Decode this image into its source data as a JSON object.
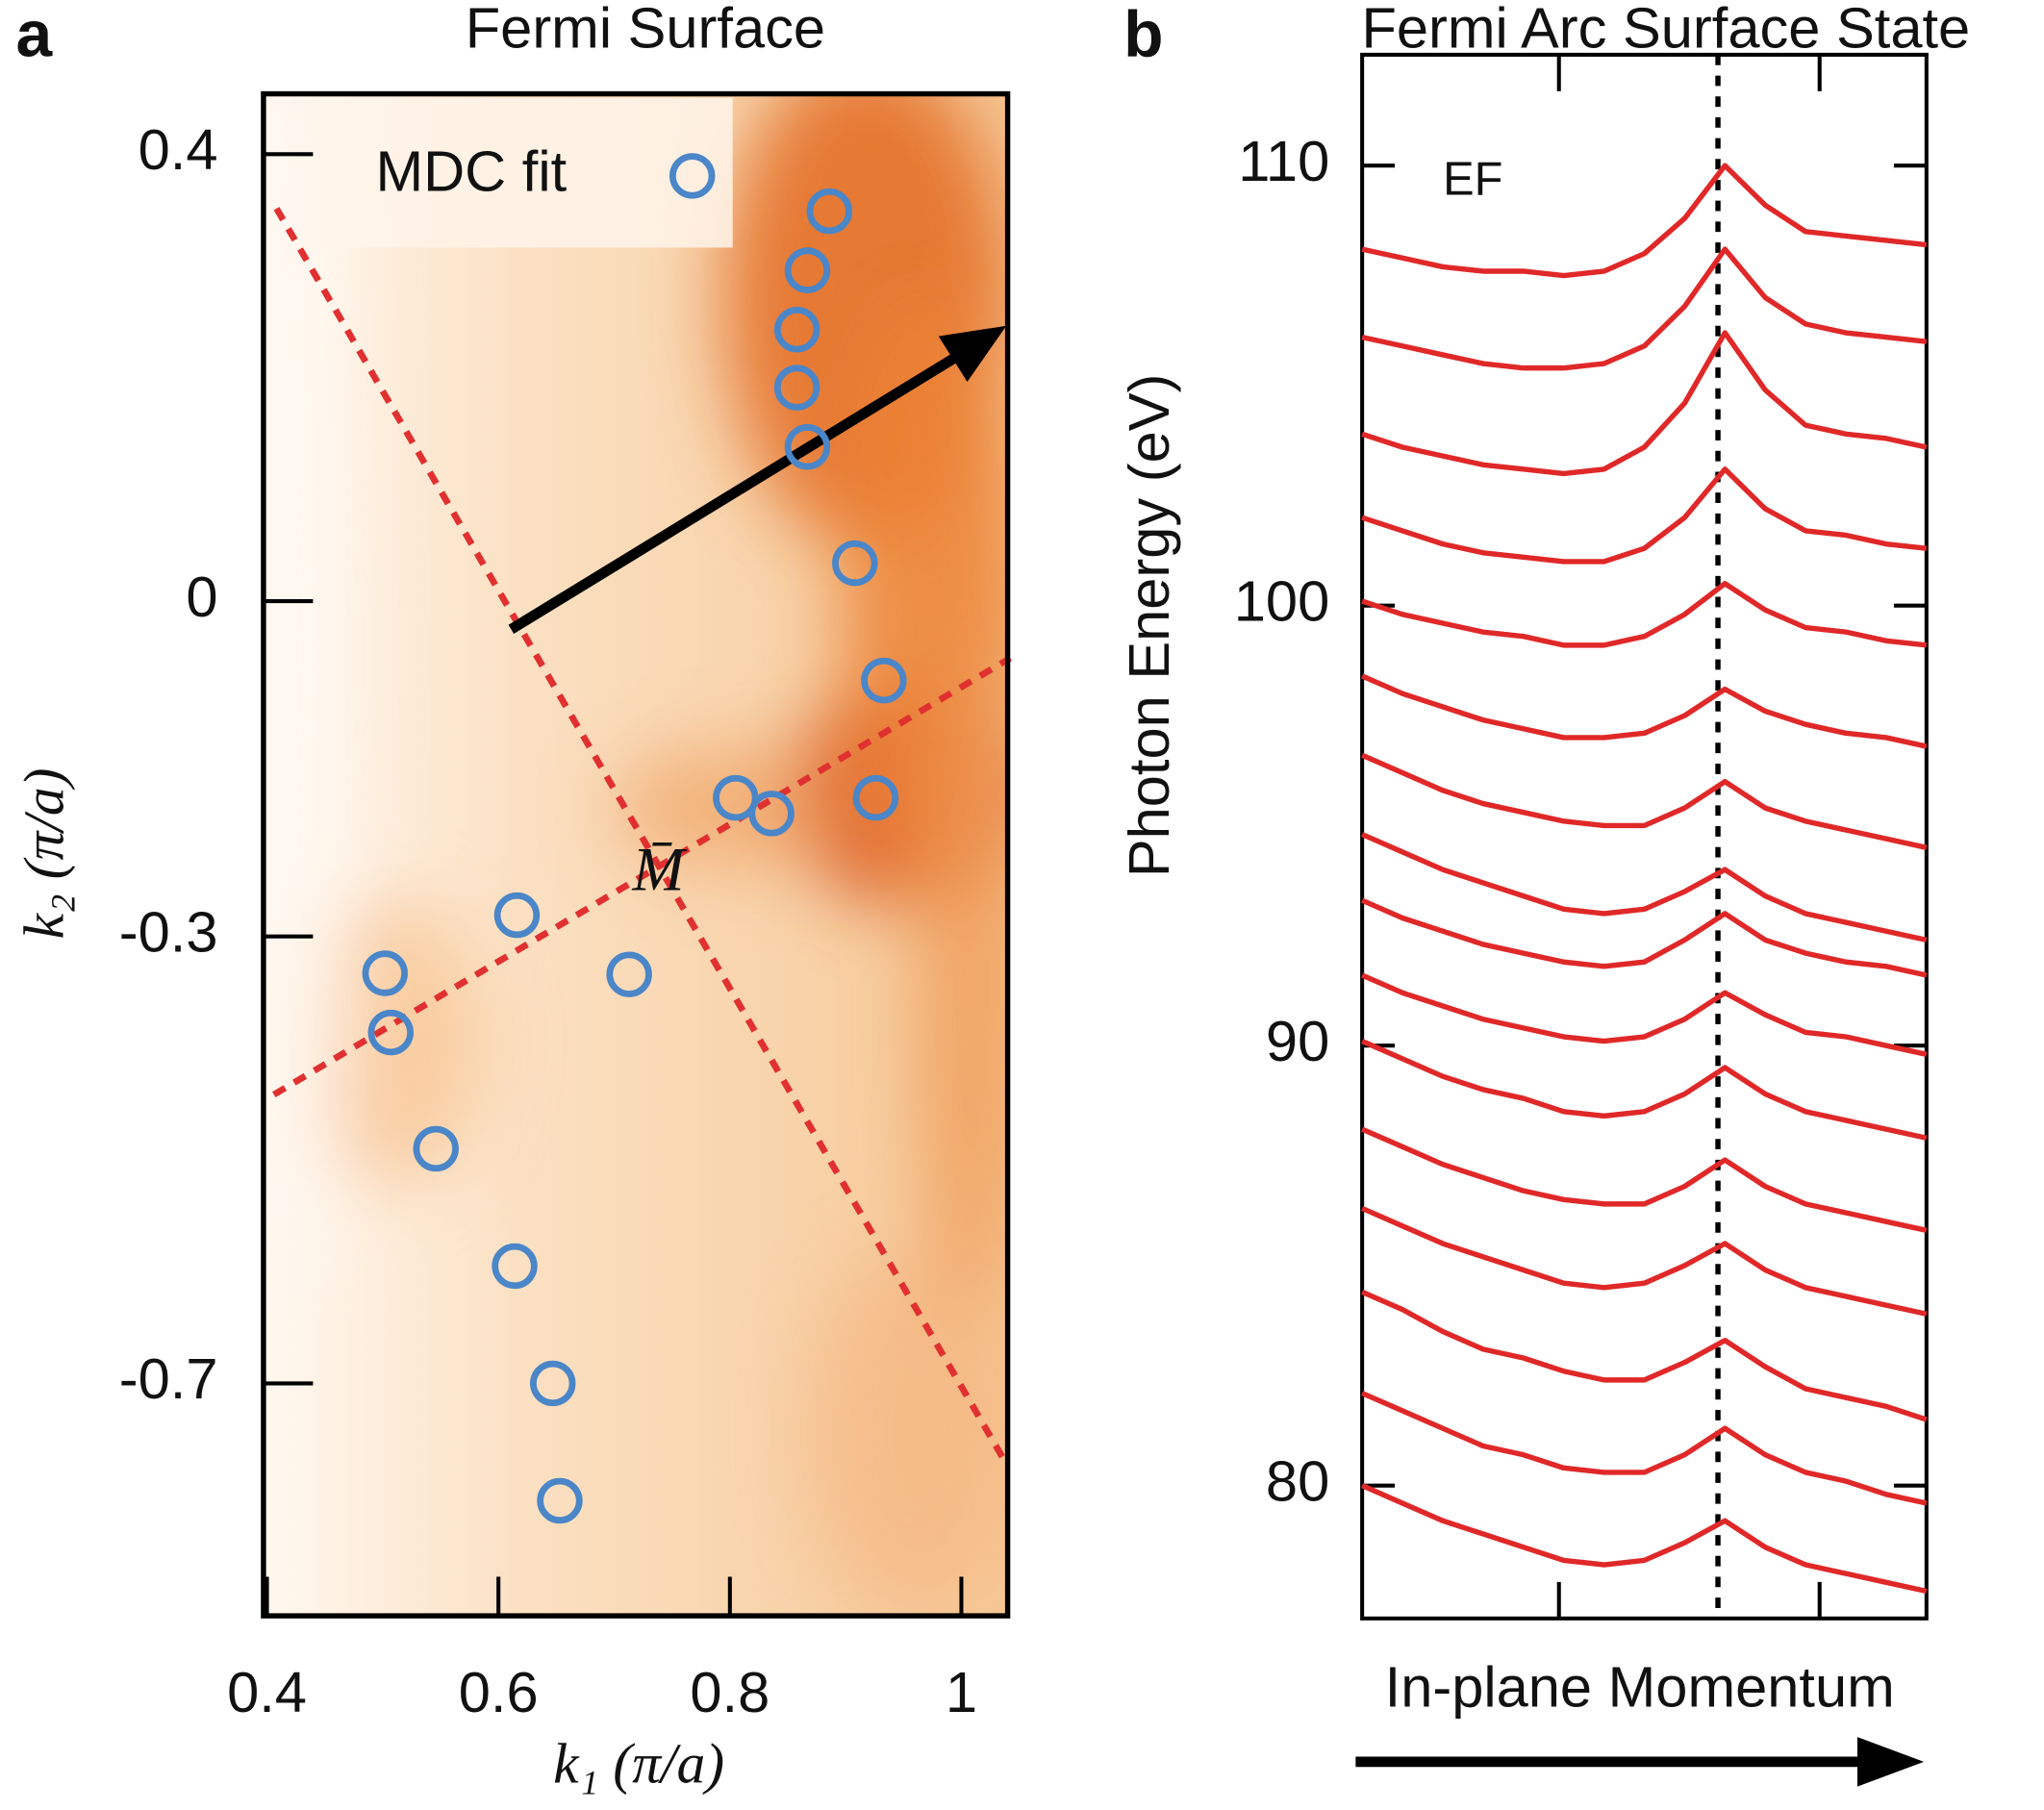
{
  "chart_data": [
    {
      "type": "scatter",
      "panel_label": "a",
      "title": "Fermi Surface",
      "x_label": "k₁ (π/a)",
      "y_label": "k₂ (π/a)",
      "annotations": [
        "M̄"
      ],
      "legend": "upper left",
      "xlim": [
        0.397,
        1.04
      ],
      "ylim": [
        -0.908,
        0.454
      ],
      "xticks": [
        0.4,
        0.6,
        0.8,
        1
      ],
      "yticks": [
        0.4,
        0,
        -0.3,
        -0.7
      ],
      "series": [
        {
          "name": "MDC fit",
          "color": "#4a86c8",
          "x": [
            0.886,
            0.867,
            0.858,
            0.858,
            0.867,
            0.908,
            0.933,
            0.926,
            0.805,
            0.836,
            0.616,
            0.713,
            0.502,
            0.507,
            0.546,
            0.614,
            0.647,
            0.653
          ],
          "values": [
            0.349,
            0.296,
            0.243,
            0.191,
            0.138,
            0.034,
            -0.071,
            -0.176,
            -0.176,
            -0.19,
            -0.281,
            -0.334,
            -0.333,
            -0.386,
            -0.49,
            -0.595,
            -0.7,
            -0.805
          ]
        }
      ]
    },
    {
      "type": "line",
      "panel_label": "b",
      "title": "Fermi Arc Surface State",
      "x_label": "In-plane Momentum",
      "y_label": "Photon Energy (eV)",
      "annotations": [
        "EF"
      ],
      "ylim": [
        76.98,
        112.52
      ],
      "yticks": [
        80,
        90,
        100,
        110
      ],
      "series": [
        {
          "color": "#e02828",
          "values": [
            108.1,
            107.9,
            107.7,
            107.6,
            107.6,
            107.5,
            107.6,
            108.0,
            108.8,
            110.0,
            109.1,
            108.5,
            108.4,
            108.3,
            108.2
          ]
        },
        {
          "color": "#e02828",
          "values": [
            106.1,
            105.9,
            105.7,
            105.5,
            105.4,
            105.4,
            105.5,
            105.9,
            106.8,
            108.1,
            107.0,
            106.4,
            106.2,
            106.1,
            106.0
          ]
        },
        {
          "color": "#e02828",
          "values": [
            103.9,
            103.6,
            103.4,
            103.2,
            103.1,
            103.0,
            103.1,
            103.6,
            104.6,
            106.2,
            104.9,
            104.1,
            103.9,
            103.8,
            103.6
          ]
        },
        {
          "color": "#e02828",
          "values": [
            102.0,
            101.7,
            101.4,
            101.2,
            101.1,
            101.0,
            101.0,
            101.3,
            102.0,
            103.1,
            102.2,
            101.7,
            101.6,
            101.4,
            101.3
          ]
        },
        {
          "color": "#e02828",
          "values": [
            100.1,
            99.8,
            99.6,
            99.4,
            99.3,
            99.1,
            99.1,
            99.3,
            99.8,
            100.5,
            99.9,
            99.5,
            99.4,
            99.2,
            99.1
          ]
        },
        {
          "color": "#e02828",
          "values": [
            98.4,
            98.0,
            97.7,
            97.4,
            97.2,
            97.0,
            97.0,
            97.1,
            97.5,
            98.1,
            97.6,
            97.3,
            97.1,
            97.0,
            96.8
          ]
        },
        {
          "color": "#e02828",
          "values": [
            96.6,
            96.2,
            95.8,
            95.5,
            95.3,
            95.1,
            95.0,
            95.0,
            95.4,
            96.0,
            95.4,
            95.1,
            94.9,
            94.7,
            94.5
          ]
        },
        {
          "color": "#e02828",
          "values": [
            94.8,
            94.4,
            94.0,
            93.7,
            93.4,
            93.1,
            93.0,
            93.1,
            93.5,
            94.0,
            93.4,
            93.0,
            92.8,
            92.6,
            92.4
          ]
        },
        {
          "color": "#e02828",
          "values": [
            93.3,
            92.9,
            92.6,
            92.3,
            92.1,
            91.9,
            91.8,
            91.9,
            92.4,
            93.0,
            92.4,
            92.1,
            91.9,
            91.8,
            91.6
          ]
        },
        {
          "color": "#e02828",
          "values": [
            91.6,
            91.2,
            90.9,
            90.6,
            90.4,
            90.2,
            90.1,
            90.2,
            90.6,
            91.2,
            90.7,
            90.3,
            90.2,
            90.0,
            89.8
          ]
        },
        {
          "color": "#e02828",
          "values": [
            90.1,
            89.7,
            89.3,
            89.0,
            88.8,
            88.5,
            88.4,
            88.5,
            88.9,
            89.5,
            88.9,
            88.5,
            88.3,
            88.1,
            87.9
          ]
        },
        {
          "color": "#e02828",
          "values": [
            88.1,
            87.7,
            87.3,
            87.0,
            86.7,
            86.5,
            86.4,
            86.4,
            86.8,
            87.4,
            86.8,
            86.4,
            86.2,
            86.0,
            85.8
          ]
        },
        {
          "color": "#e02828",
          "values": [
            86.3,
            85.9,
            85.5,
            85.2,
            84.9,
            84.6,
            84.5,
            84.6,
            85.0,
            85.5,
            84.9,
            84.5,
            84.3,
            84.1,
            83.9
          ]
        },
        {
          "color": "#e02828",
          "values": [
            84.4,
            84.0,
            83.5,
            83.1,
            82.9,
            82.6,
            82.4,
            82.4,
            82.8,
            83.3,
            82.7,
            82.2,
            82.0,
            81.8,
            81.5
          ]
        },
        {
          "color": "#e02828",
          "values": [
            82.1,
            81.7,
            81.3,
            80.9,
            80.7,
            80.4,
            80.3,
            80.3,
            80.7,
            81.3,
            80.7,
            80.3,
            80.1,
            79.8,
            79.6
          ]
        },
        {
          "color": "#e02828",
          "values": [
            80.0,
            79.6,
            79.2,
            78.9,
            78.6,
            78.3,
            78.2,
            78.3,
            78.7,
            79.2,
            78.6,
            78.2,
            78.0,
            77.8,
            77.6
          ]
        }
      ]
    }
  ]
}
